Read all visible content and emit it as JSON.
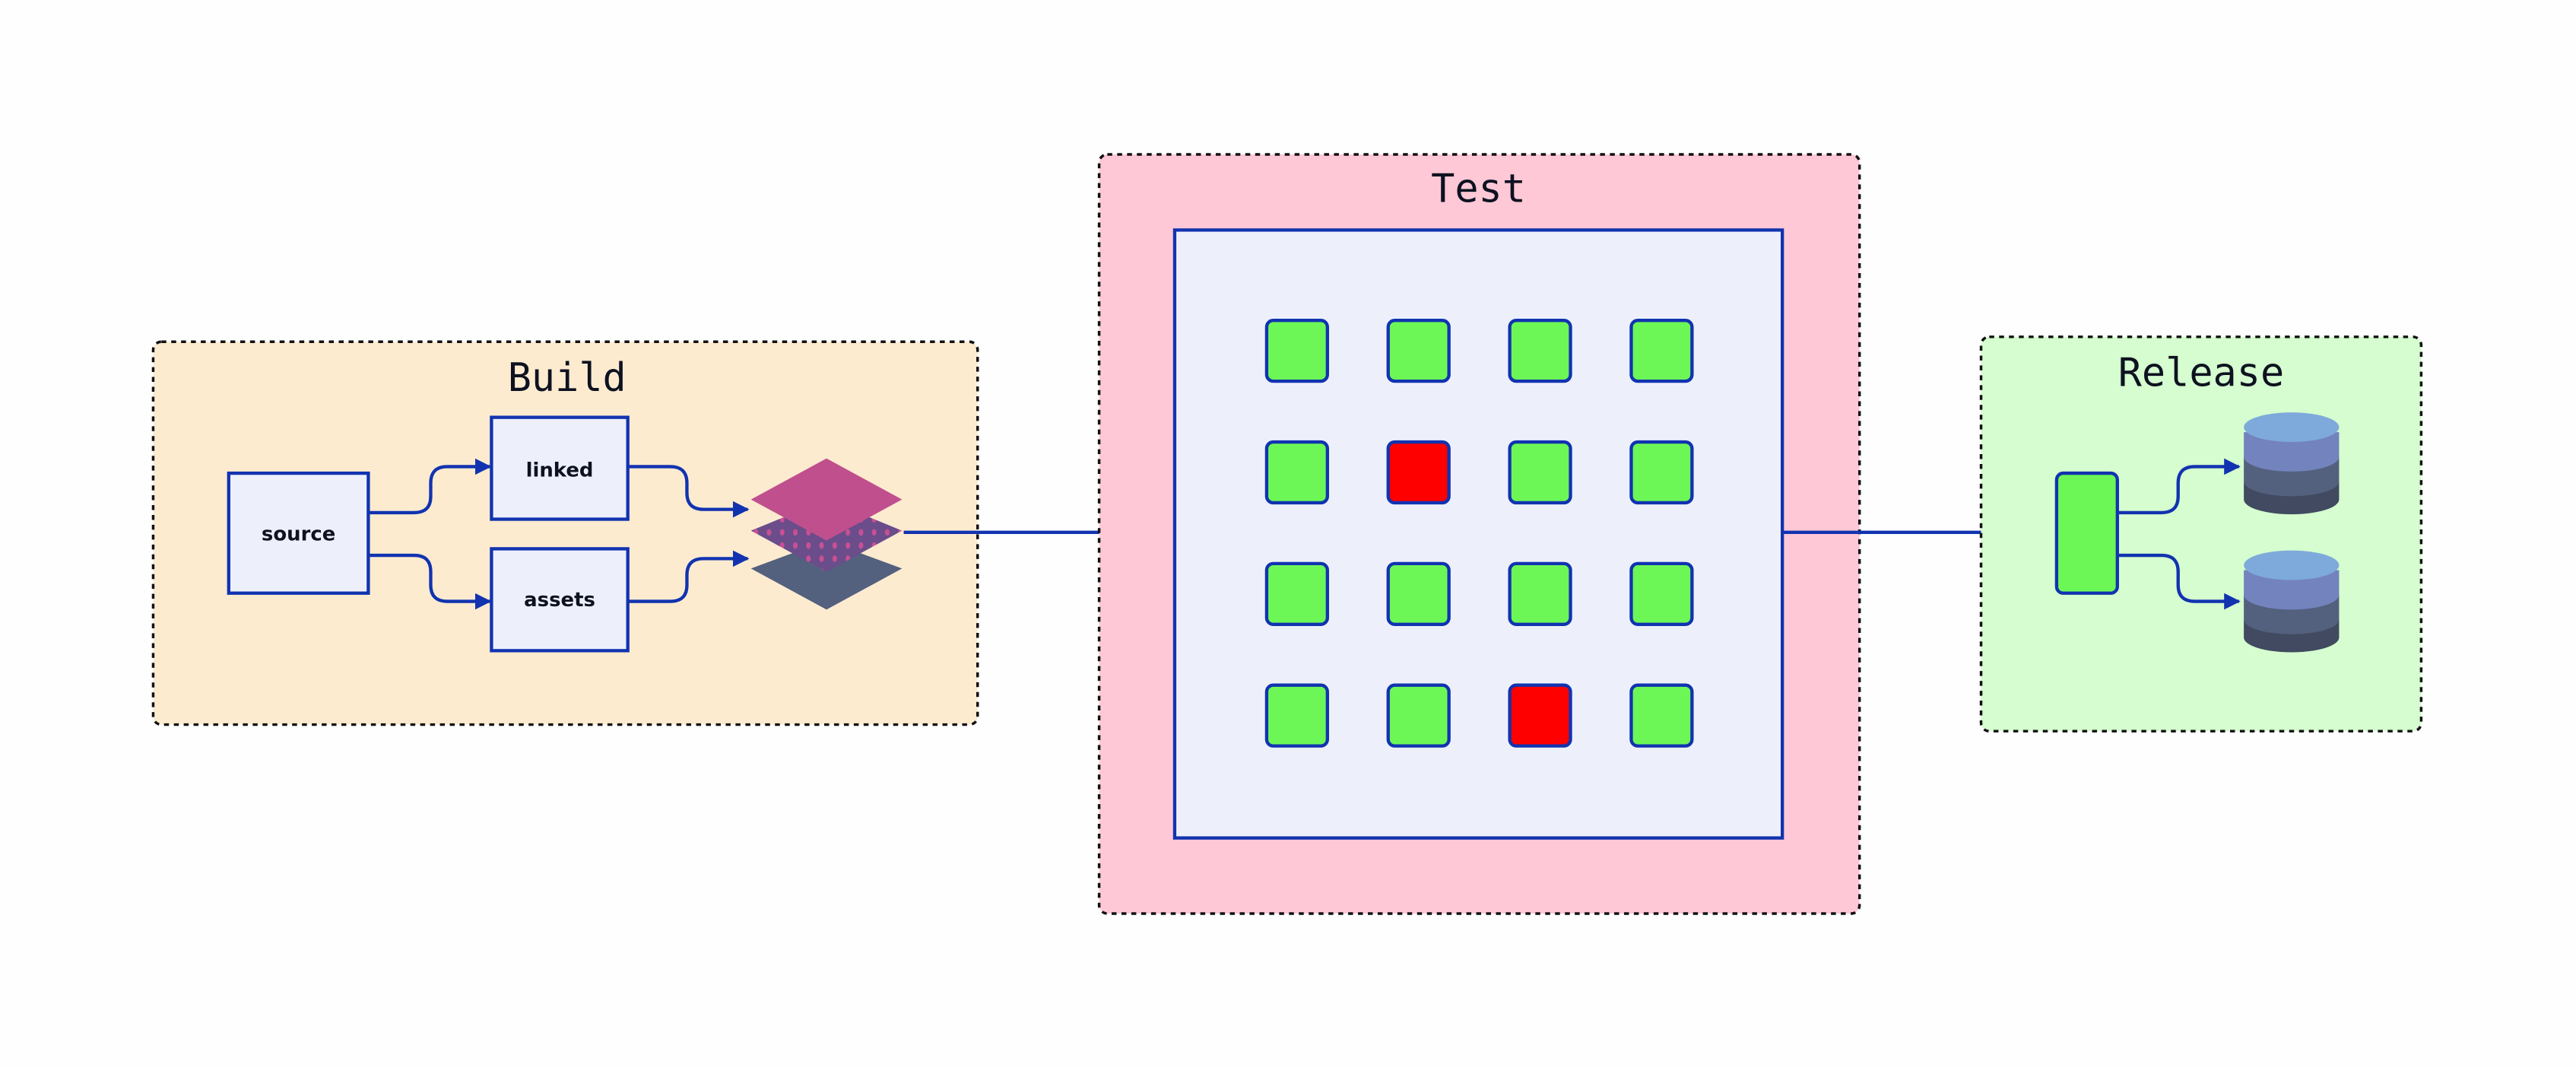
{
  "stages": {
    "build": {
      "title": "Build",
      "nodes": {
        "source": "source",
        "linked": "linked",
        "assets": "assets"
      },
      "icon": "layers-icon",
      "fill": "#fdebd0"
    },
    "test": {
      "title": "Test",
      "fill": "#ffc8d6",
      "panel_fill": "#edf0fb",
      "grid": [
        [
          "pass",
          "pass",
          "pass",
          "pass"
        ],
        [
          "pass",
          "fail",
          "pass",
          "pass"
        ],
        [
          "pass",
          "pass",
          "pass",
          "pass"
        ],
        [
          "pass",
          "pass",
          "fail",
          "pass"
        ]
      ]
    },
    "release": {
      "title": "Release",
      "fill": "#d5fdcf",
      "targets": [
        "database-icon",
        "database-icon"
      ]
    }
  },
  "colors": {
    "edge": "#1133b0",
    "pass": "#6cf757",
    "fail": "#ff0000",
    "node_fill": "#edf0fb"
  }
}
